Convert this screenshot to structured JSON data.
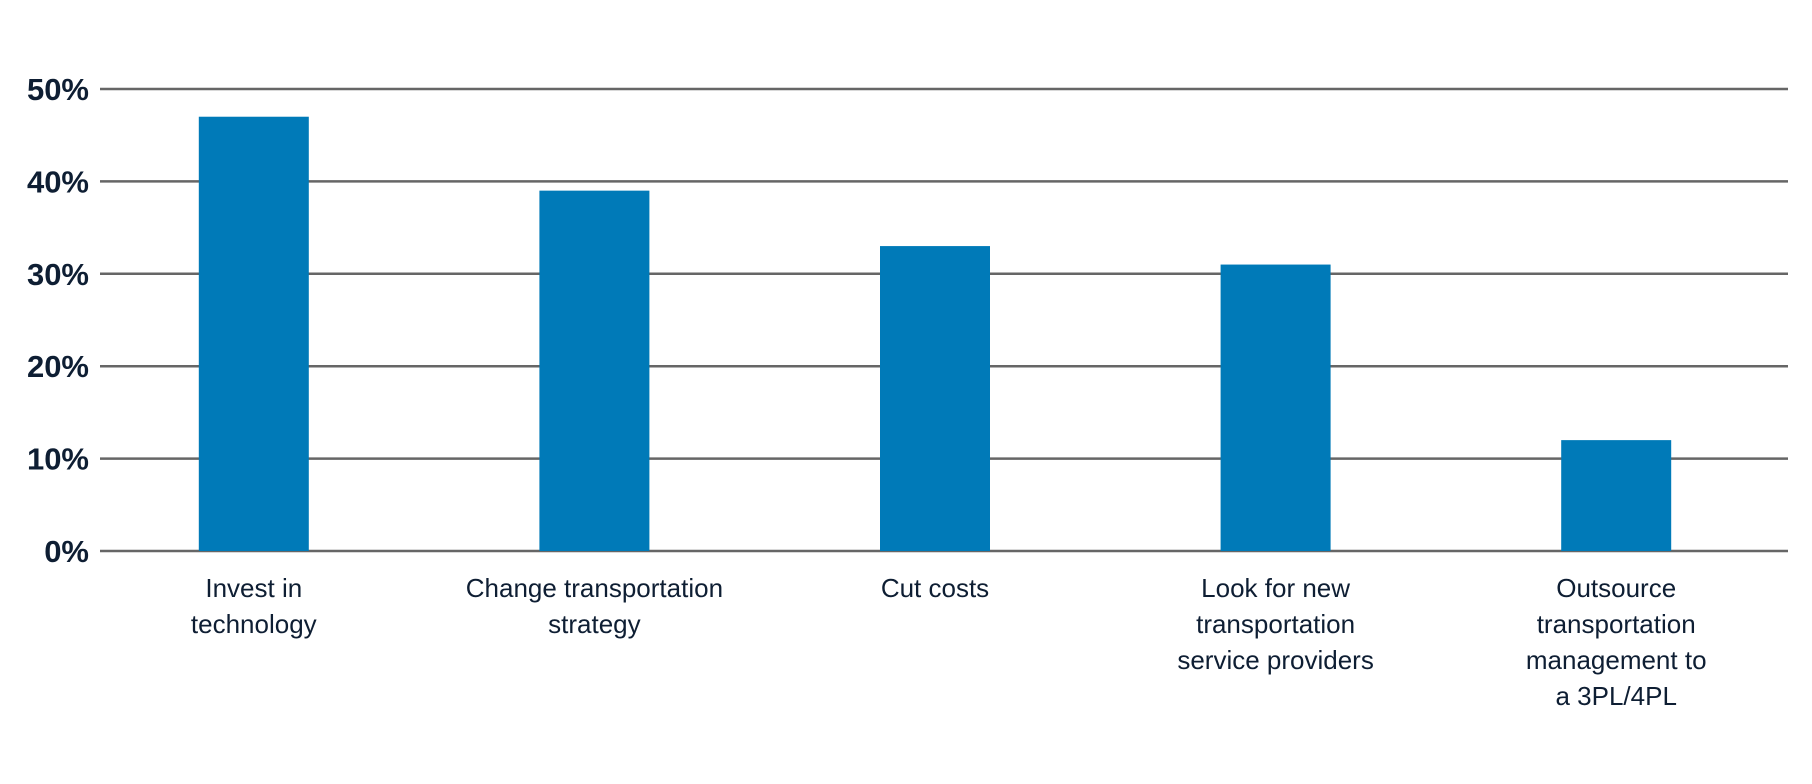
{
  "colors": {
    "bar": "#007ab8",
    "grid": "#666666",
    "text": "#0e1e33",
    "background": "#ffffff"
  },
  "chart_data": {
    "type": "bar",
    "title": "",
    "xlabel": "",
    "ylabel": "",
    "ylim": [
      0,
      50
    ],
    "grid": true,
    "yticks": [
      0,
      10,
      20,
      30,
      40,
      50
    ],
    "ytick_labels": [
      "0%",
      "10%",
      "20%",
      "30%",
      "40%",
      "50%"
    ],
    "categories": [
      [
        "Invest in",
        "technology"
      ],
      [
        "Change transportation",
        "strategy"
      ],
      [
        "Cut costs"
      ],
      [
        "Look for new",
        "transportation",
        "service providers"
      ],
      [
        "Outsource",
        "transportation",
        "management to",
        "a 3PL/4PL"
      ]
    ],
    "values": [
      47,
      39,
      33,
      31,
      12
    ],
    "unit": "%"
  }
}
